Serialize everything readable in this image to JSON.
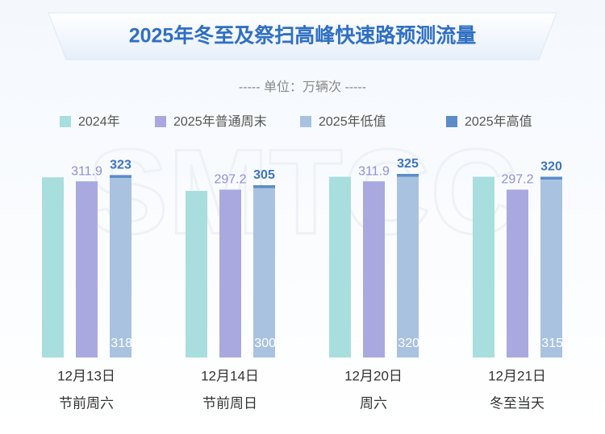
{
  "chart_data": {
    "type": "bar",
    "title": "2025年冬至及祭扫高峰快速路预测流量",
    "subtitle": "----- 单位：万辆次 -----",
    "watermark": "SMTCC",
    "categories": [
      "12月13日",
      "12月14日",
      "12月20日",
      "12月21日"
    ],
    "subcategories": [
      "节前周六",
      "节前周日",
      "周六",
      "冬至当天"
    ],
    "series": [
      {
        "name": "2024年",
        "color": "#a8dedd",
        "values": [
          319,
          295,
          320,
          320
        ]
      },
      {
        "name": "2025年普通周末",
        "color": "#a9a9e0",
        "values": [
          311.9,
          297.2,
          311.9,
          297.2
        ]
      },
      {
        "name": "2025年低值",
        "color": "#a9c2e0",
        "values": [
          318,
          300,
          320,
          315
        ]
      },
      {
        "name": "2025年高值",
        "color": "#5b8cc8",
        "values": [
          323,
          305,
          325,
          320
        ]
      }
    ]
  }
}
